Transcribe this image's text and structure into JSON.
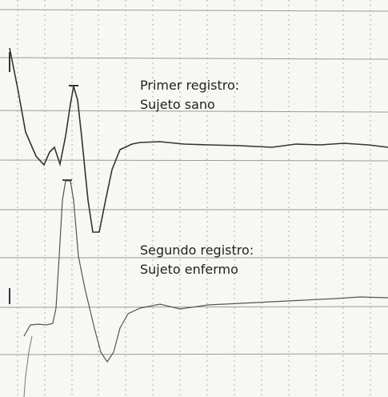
{
  "annotations": [
    {
      "lines": [
        "Primer registro:",
        "Sujeto sano"
      ]
    },
    {
      "lines": [
        "Segundo registro:",
        "Sujeto enfermo"
      ]
    }
  ]
}
